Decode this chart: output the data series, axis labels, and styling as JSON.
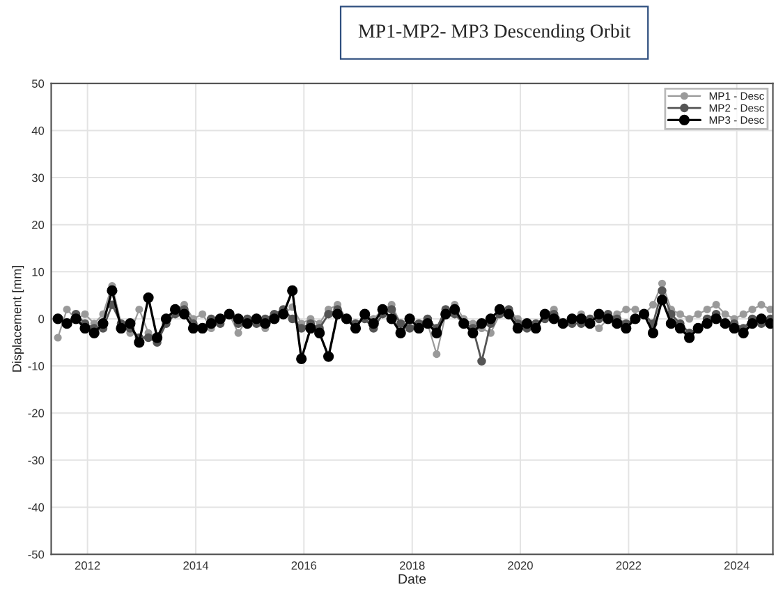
{
  "chart_data": {
    "type": "line",
    "title": "MP1-MP2- MP3 Descending Orbit",
    "xlabel": "Date",
    "ylabel": "Displacement [mm]",
    "x": [
      "2011-06-15",
      "2011-08-15",
      "2011-10-15",
      "2011-12-15",
      "2012-02-15",
      "2012-04-15",
      "2012-06-15",
      "2012-08-15",
      "2012-10-15",
      "2012-12-15",
      "2013-02-15",
      "2013-04-15",
      "2013-06-15",
      "2013-08-15",
      "2013-10-15",
      "2013-12-15",
      "2014-02-15",
      "2014-04-15",
      "2014-06-15",
      "2014-08-15",
      "2014-10-15",
      "2014-12-15",
      "2015-02-15",
      "2015-04-15",
      "2015-06-15",
      "2015-08-15",
      "2015-10-15",
      "2015-12-15",
      "2016-02-15",
      "2016-04-15",
      "2016-06-15",
      "2016-08-15",
      "2016-10-15",
      "2016-12-15",
      "2017-02-15",
      "2017-04-15",
      "2017-06-15",
      "2017-08-15",
      "2017-10-15",
      "2017-12-15",
      "2018-02-15",
      "2018-04-15",
      "2018-06-15",
      "2018-08-15",
      "2018-10-15",
      "2018-12-15",
      "2019-02-15",
      "2019-04-15",
      "2019-06-15",
      "2019-08-15",
      "2019-10-15",
      "2019-12-15",
      "2020-02-15",
      "2020-04-15",
      "2020-06-15",
      "2020-08-15",
      "2020-10-15",
      "2020-12-15",
      "2021-02-15",
      "2021-04-15",
      "2021-06-15",
      "2021-08-15",
      "2021-10-15",
      "2021-12-15",
      "2022-02-15",
      "2022-04-15",
      "2022-06-15",
      "2022-08-15",
      "2022-10-15",
      "2022-12-15",
      "2023-02-15",
      "2023-04-15",
      "2023-06-15",
      "2023-08-15",
      "2023-10-15",
      "2023-12-15",
      "2024-02-15",
      "2024-04-15",
      "2024-06-15",
      "2024-08-15"
    ],
    "series": [
      {
        "name": "MP1 - Desc",
        "color": "#9a9a9a",
        "values": [
          -4,
          2,
          0,
          1,
          -1,
          1,
          7,
          -1,
          -3,
          2,
          -3,
          -4,
          0,
          2,
          3,
          0,
          1,
          -2,
          0,
          1,
          -3,
          0,
          -1,
          -2,
          0,
          1,
          2.5,
          -1,
          0,
          -1,
          2,
          3,
          0,
          -2,
          1,
          0,
          2,
          3,
          -1,
          0,
          -2,
          -1,
          -7.5,
          1,
          3,
          0,
          -1,
          -2,
          -3,
          1,
          2,
          0,
          -1,
          -2,
          1,
          2,
          -1,
          0,
          1,
          -1,
          -2,
          0,
          1,
          2,
          2,
          1,
          3,
          7.5,
          2,
          1,
          0,
          1,
          2,
          3,
          1,
          0,
          1,
          2,
          3,
          2
        ]
      },
      {
        "name": "MP2 - Desc",
        "color": "#555555",
        "values": [
          0,
          -1,
          1,
          -1,
          -2,
          -2,
          3,
          -1,
          -2,
          -4,
          -4,
          -5,
          -1,
          1,
          2,
          -1,
          -2,
          0,
          -1,
          1,
          -1,
          0,
          -1,
          0,
          1,
          2,
          0,
          -2,
          -1,
          -2,
          1,
          2,
          0,
          -1,
          0,
          -2,
          1,
          2,
          -1,
          -2,
          -1,
          0,
          -2,
          2,
          1,
          -1,
          -2,
          -9,
          -1,
          1,
          2,
          -1,
          -2,
          -1,
          0,
          1,
          -1,
          -1,
          -1,
          0,
          0,
          1,
          0,
          -1,
          0,
          1,
          -1,
          6,
          1,
          -1,
          -3,
          -2,
          0,
          1,
          -1,
          -1,
          -2,
          0,
          -1,
          0
        ]
      },
      {
        "name": "MP3 - Desc",
        "color": "#000000",
        "values": [
          0,
          -1,
          0,
          -2,
          -3,
          -1,
          6,
          -2,
          -1,
          -5,
          4.5,
          -4,
          0,
          2,
          1,
          -2,
          -2,
          -1,
          0,
          1,
          0,
          -1,
          0,
          -1,
          0,
          1,
          6,
          -8.5,
          -2,
          -3,
          -8,
          1,
          0,
          -2,
          1,
          -1,
          2,
          0,
          -3,
          0,
          -2,
          -1,
          -3,
          1,
          2,
          -1,
          -3,
          -1,
          0,
          2,
          1,
          -2,
          -1,
          -2,
          1,
          0,
          -1,
          0,
          0,
          -1,
          1,
          0,
          -1,
          -2,
          0,
          1,
          -3,
          4,
          -1,
          -2,
          -4,
          -2,
          -1,
          0,
          -1,
          -2,
          -3,
          -1,
          0,
          -1
        ]
      }
    ],
    "xlim": [
      "2011-05-01",
      "2024-09-01"
    ],
    "xticks": [
      "2012",
      "2014",
      "2016",
      "2018",
      "2020",
      "2022",
      "2024"
    ],
    "ylim": [
      -50,
      50
    ],
    "yticks": [
      -50,
      -40,
      -30,
      -20,
      -10,
      0,
      10,
      20,
      30,
      40,
      50
    ],
    "grid": true,
    "legend": "top right",
    "marker": "circle",
    "line_style": "solid"
  }
}
